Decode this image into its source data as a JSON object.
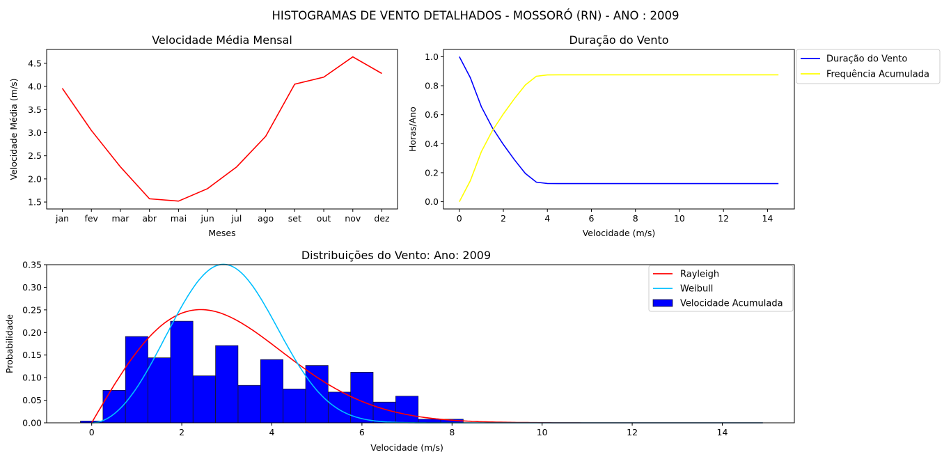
{
  "suptitle": "HISTOGRAMAS DE VENTO DETALHADOS - MOSSORÓ (RN) - ANO : 2009",
  "chart_data": [
    {
      "type": "line",
      "title": "Velocidade Média Mensal",
      "xlabel": "Meses",
      "ylabel": "Velocidade Média (m/s)",
      "categories": [
        "jan",
        "fev",
        "mar",
        "abr",
        "mai",
        "jun",
        "jul",
        "ago",
        "set",
        "out",
        "nov",
        "dez"
      ],
      "values": [
        3.96,
        3.05,
        2.26,
        1.57,
        1.52,
        1.79,
        2.26,
        2.92,
        4.05,
        4.2,
        4.64,
        4.28
      ],
      "ylim": [
        1.35,
        4.8
      ],
      "yticks": [
        1.5,
        2.0,
        2.5,
        3.0,
        3.5,
        4.0,
        4.5
      ],
      "color": "#ff0000",
      "grid": false
    },
    {
      "type": "line",
      "title": "Duração do Vento",
      "xlabel": "Velocidade (m/s)",
      "ylabel": "Horas/Ano",
      "x": [
        0,
        0.5,
        1,
        1.5,
        2,
        2.5,
        3,
        3.5,
        4,
        4.5,
        5,
        6,
        7,
        8,
        9,
        10,
        11,
        12,
        13,
        14,
        14.5
      ],
      "series": [
        {
          "name": "Duração do Vento",
          "color": "#0000ff",
          "values": [
            1.0,
            0.855,
            0.655,
            0.51,
            0.395,
            0.29,
            0.195,
            0.135,
            0.126,
            0.125,
            0.125,
            0.125,
            0.125,
            0.125,
            0.125,
            0.125,
            0.125,
            0.125,
            0.125,
            0.125,
            0.125
          ]
        },
        {
          "name": "Frequência Acumulada",
          "color": "#ffff00",
          "values": [
            0.0,
            0.145,
            0.345,
            0.49,
            0.605,
            0.71,
            0.805,
            0.865,
            0.874,
            0.875,
            0.875,
            0.875,
            0.875,
            0.875,
            0.875,
            0.875,
            0.875,
            0.875,
            0.875,
            0.875,
            0.875
          ]
        }
      ],
      "xlim": [
        -0.72,
        15.22
      ],
      "xticks": [
        0,
        2,
        4,
        6,
        8,
        10,
        12,
        14
      ],
      "ylim": [
        -0.05,
        1.05
      ],
      "yticks": [
        0.0,
        0.2,
        0.4,
        0.6,
        0.8,
        1.0
      ],
      "legend": "outside-top-right",
      "grid": false
    },
    {
      "type": "bar",
      "title": "Distribuições do Vento: Ano: 2009",
      "xlabel": "Velocidade (m/s)",
      "ylabel": "Probabilidade",
      "bar_width": 0.5,
      "bar_centers": [
        0,
        0.5,
        1,
        1.5,
        2,
        2.5,
        3,
        3.5,
        4,
        4.5,
        5,
        5.5,
        6,
        6.5,
        7,
        7.5,
        8
      ],
      "bar_values": [
        0.004,
        0.072,
        0.191,
        0.144,
        0.225,
        0.104,
        0.171,
        0.083,
        0.14,
        0.075,
        0.127,
        0.068,
        0.112,
        0.046,
        0.059,
        0.008,
        0.008
      ],
      "bar_name": "Velocidade Acumulada",
      "bar_color": "#0000ff",
      "rayleigh": {
        "name": "Rayleigh",
        "color": "#ff0000",
        "sigma": 2.42
      },
      "weibull": {
        "name": "Weibull",
        "color": "#00bfff",
        "k": 3.0,
        "c": 3.35
      },
      "curve_range": [
        0,
        14.9
      ],
      "xlim": [
        -1.0,
        15.6
      ],
      "xticks": [
        0,
        2,
        4,
        6,
        8,
        10,
        12,
        14
      ],
      "ylim": [
        0,
        0.35
      ],
      "yticks": [
        0.0,
        0.05,
        0.1,
        0.15,
        0.2,
        0.25,
        0.3,
        0.35
      ],
      "legend": "top-right",
      "grid": false
    }
  ]
}
